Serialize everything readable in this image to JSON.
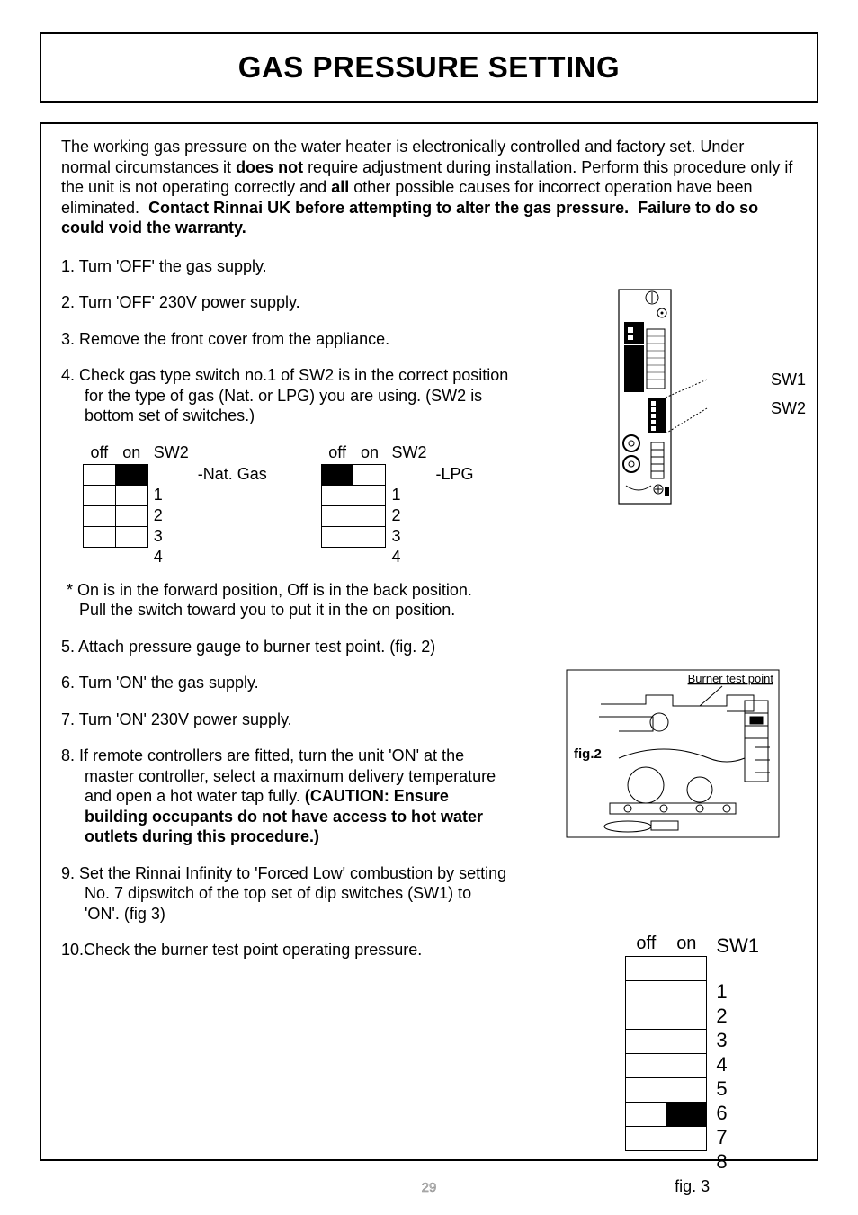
{
  "title": "GAS PRESSURE SETTING",
  "intro_html": "The working gas pressure on the water heater is electronically controlled and factory set. Under normal circumstances it <b>does not</b> require adjustment during installation. Perform this procedure only if the unit is not operating correctly and <b>all</b> other possible causes for incorrect operation have been eliminated. &nbsp;<b>Contact Rinnai UK before attempting to alter the gas pressure.&nbsp; Failure to do so could void the warranty.</b>",
  "steps_a": [
    "1. Turn 'OFF' the gas supply.",
    "2. Turn 'OFF' 230V power supply.",
    "3. Remove the front cover from the appliance.",
    "4. Check gas type switch no.1 of SW2 is in the correct position for the type of gas (Nat. or LPG) you are using. (SW2 is bottom set of switches.)"
  ],
  "sw2_nat": {
    "header_off": "off",
    "header_on": "on",
    "label": "SW2",
    "rows": [
      {
        "off": false,
        "on": true,
        "num": "1"
      },
      {
        "off": false,
        "on": false,
        "num": "2"
      },
      {
        "off": false,
        "on": false,
        "num": "3"
      },
      {
        "off": false,
        "on": false,
        "num": "4"
      }
    ],
    "side_label": "-Nat. Gas"
  },
  "sw2_lpg": {
    "header_off": "off",
    "header_on": "on",
    "label": "SW2",
    "rows": [
      {
        "off": true,
        "on": false,
        "num": "1"
      },
      {
        "off": false,
        "on": false,
        "num": "2"
      },
      {
        "off": false,
        "on": false,
        "num": "3"
      },
      {
        "off": false,
        "on": false,
        "num": "4"
      }
    ],
    "side_label": "-LPG"
  },
  "note": "* On is in the forward position, Off is in the back position.  Pull the switch toward you to put it in the on position.",
  "steps_b": [
    "5. Attach pressure gauge to burner test point. (fig. 2)",
    "6. Turn 'ON' the gas supply.",
    "7. Turn 'ON' 230V power supply."
  ],
  "step8_html": "8. If remote controllers are fitted, turn the unit 'ON' at the master controller, select a maximum delivery temperature and open a hot water tap fully. <b>(CAUTION: Ensure building occupants do not have access to hot water outlets during this procedure.)</b>",
  "steps_c": [
    "9. Set the Rinnai Infinity to 'Forced Low' combustion by setting No. 7 dipswitch of the top set of dip switches (SW1)  to 'ON'. (fig 3)",
    "10.Check the burner test point operating pressure."
  ],
  "fig1_labels": {
    "sw1": "SW1",
    "sw2": "SW2"
  },
  "fig2_label_burner": "Burner test point",
  "fig2_caption": "fig.2",
  "fig3": {
    "header_off": "off",
    "header_on": "on",
    "label": "SW1",
    "rows": [
      {
        "off": false,
        "on": false,
        "num": "1"
      },
      {
        "off": false,
        "on": false,
        "num": "2"
      },
      {
        "off": false,
        "on": false,
        "num": "3"
      },
      {
        "off": false,
        "on": false,
        "num": "4"
      },
      {
        "off": false,
        "on": false,
        "num": "5"
      },
      {
        "off": false,
        "on": false,
        "num": "6"
      },
      {
        "off": false,
        "on": true,
        "num": "7"
      },
      {
        "off": false,
        "on": false,
        "num": "8"
      }
    ],
    "caption": "fig. 3"
  },
  "page_number": "29"
}
